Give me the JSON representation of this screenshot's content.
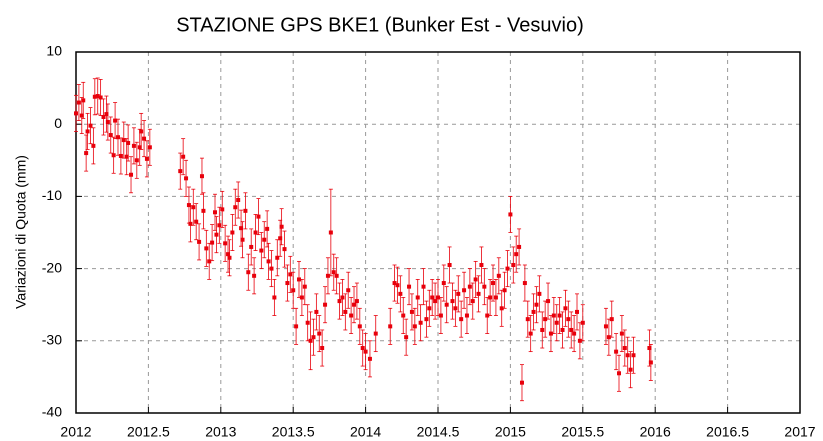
{
  "chart_data": {
    "type": "scatter",
    "title": "STAZIONE GPS BKE1 (Bunker Est - Vesuvio)",
    "y_label": "Variazioni di Quota (mm)",
    "xlim": [
      2012,
      2017
    ],
    "xticks": [
      2012,
      2012.5,
      2013,
      2013.5,
      2014,
      2014.5,
      2015,
      2015.5,
      2016,
      2016.5,
      2017
    ],
    "ylim": [
      -40,
      10
    ],
    "yticks": [
      -40,
      -30,
      -20,
      -10,
      0,
      10
    ],
    "grid": true,
    "series": [
      {
        "color": "#e8000b",
        "x": [
          2012.0,
          2012.02,
          2012.04,
          2012.05,
          2012.07,
          2012.08,
          2012.1,
          2012.12,
          2012.13,
          2012.15,
          2012.17,
          2012.19,
          2012.21,
          2012.22,
          2012.24,
          2012.26,
          2012.27,
          2012.29,
          2012.31,
          2012.33,
          2012.35,
          2012.36,
          2012.38,
          2012.4,
          2012.42,
          2012.44,
          2012.45,
          2012.47,
          2012.49,
          2012.51,
          2012.72,
          2012.74,
          2012.76,
          2012.78,
          2012.79,
          2012.81,
          2012.83,
          2012.85,
          2012.87,
          2012.88,
          2012.9,
          2012.92,
          2012.94,
          2012.96,
          2012.97,
          2012.99,
          2013.01,
          2013.03,
          2013.05,
          2013.06,
          2013.08,
          2013.1,
          2013.12,
          2013.14,
          2013.15,
          2013.17,
          2013.19,
          2013.21,
          2013.23,
          2013.24,
          2013.26,
          2013.28,
          2013.3,
          2013.32,
          2013.33,
          2013.35,
          2013.37,
          2013.39,
          2013.41,
          2013.42,
          2013.44,
          2013.46,
          2013.48,
          2013.5,
          2013.52,
          2013.54,
          2013.56,
          2013.58,
          2013.6,
          2013.62,
          2013.64,
          2013.66,
          2013.68,
          2013.7,
          2013.72,
          2013.74,
          2013.76,
          2013.78,
          2013.8,
          2013.82,
          2013.84,
          2013.86,
          2013.88,
          2013.9,
          2013.92,
          2013.94,
          2013.96,
          2013.98,
          2014.0,
          2014.03,
          2014.07,
          2014.17,
          2014.2,
          2014.22,
          2014.24,
          2014.26,
          2014.28,
          2014.3,
          2014.32,
          2014.34,
          2014.36,
          2014.38,
          2014.4,
          2014.42,
          2014.44,
          2014.46,
          2014.48,
          2014.5,
          2014.52,
          2014.54,
          2014.56,
          2014.58,
          2014.6,
          2014.62,
          2014.64,
          2014.66,
          2014.68,
          2014.7,
          2014.72,
          2014.74,
          2014.76,
          2014.78,
          2014.8,
          2014.82,
          2014.84,
          2014.86,
          2014.88,
          2014.9,
          2014.92,
          2014.94,
          2014.96,
          2014.98,
          2015.0,
          2015.02,
          2015.04,
          2015.06,
          2015.08,
          2015.1,
          2015.12,
          2015.14,
          2015.16,
          2015.18,
          2015.2,
          2015.22,
          2015.24,
          2015.26,
          2015.28,
          2015.3,
          2015.32,
          2015.34,
          2015.36,
          2015.38,
          2015.4,
          2015.42,
          2015.44,
          2015.46,
          2015.48,
          2015.5,
          2015.66,
          2015.68,
          2015.7,
          2015.73,
          2015.75,
          2015.77,
          2015.79,
          2015.81,
          2015.83,
          2015.85,
          2015.96,
          2015.97
        ],
        "values": [
          1.5,
          3.0,
          1.2,
          3.3,
          -4.0,
          -1.0,
          -0.2,
          -3.0,
          3.8,
          3.9,
          3.7,
          1.0,
          1.4,
          0.3,
          -1.5,
          -4.3,
          0.5,
          -1.8,
          -4.4,
          -2.2,
          -4.5,
          -2.6,
          -7.0,
          -3.0,
          -5.0,
          -3.2,
          -1.0,
          -2.0,
          -4.8,
          -3.2,
          -6.5,
          -4.5,
          -7.5,
          -11.2,
          -13.8,
          -11.5,
          -13.5,
          -16.3,
          -7.2,
          -12.0,
          -17.2,
          -19.0,
          -16.4,
          -12.2,
          -15.3,
          -14.0,
          -11.8,
          -16.5,
          -18.0,
          -18.5,
          -15.0,
          -11.5,
          -10.5,
          -14.4,
          -16.0,
          -12.0,
          -20.5,
          -17.0,
          -21.0,
          -15.0,
          -12.8,
          -17.5,
          -16.0,
          -14.5,
          -19.0,
          -20.0,
          -24.0,
          -18.5,
          -15.8,
          -14.2,
          -17.3,
          -22.0,
          -20.8,
          -23.0,
          -28.0,
          -21.5,
          -24.0,
          -22.5,
          -27.5,
          -30.0,
          -29.5,
          -26.0,
          -29.0,
          -31.0,
          -25.0,
          -21.0,
          -15.0,
          -20.5,
          -21.0,
          -24.5,
          -24.0,
          -26.0,
          -23.0,
          -26.5,
          -25.0,
          -24.5,
          -28.0,
          -31.0,
          -31.5,
          -32.5,
          -29.0,
          -28.0,
          -22.0,
          -22.3,
          -23.5,
          -26.5,
          -29.5,
          -22.5,
          -26.0,
          -28.0,
          -24.0,
          -27.5,
          -22.5,
          -27.0,
          -25.5,
          -24.0,
          -24.5,
          -24.0,
          -26.5,
          -22.0,
          -25.0,
          -19.5,
          -24.5,
          -25.5,
          -23.5,
          -27.0,
          -23.0,
          -26.5,
          -22.5,
          -24.5,
          -21.5,
          -23.5,
          -19.5,
          -22.5,
          -26.5,
          -24.0,
          -22.0,
          -24.0,
          -21.0,
          -25.5,
          -23.0,
          -20.0,
          -12.5,
          -19.5,
          -18.0,
          -17.0,
          -35.8,
          -22.0,
          -27.0,
          -29.0,
          -26.0,
          -25.0,
          -23.5,
          -28.5,
          -27.0,
          -24.5,
          -29.0,
          -26.5,
          -27.5,
          -26.5,
          -28.5,
          -25.5,
          -27.0,
          -28.5,
          -29.0,
          -26.0,
          -30.0,
          -27.5,
          -28.0,
          -29.5,
          -27.0,
          -31.5,
          -34.5,
          -29.0,
          -31.0,
          -32.0,
          -34.0,
          -32.0,
          -31.0,
          -33.0
        ],
        "errors": [
          2.5,
          2.5,
          2.5,
          2.5,
          2.5,
          2.5,
          2.5,
          2.5,
          2.5,
          2.5,
          2.5,
          2.5,
          2.5,
          2.5,
          2.5,
          2.5,
          2.5,
          2.5,
          2.5,
          2.5,
          2.5,
          2.5,
          2.5,
          2.5,
          2.5,
          2.5,
          2.5,
          2.5,
          2.5,
          2.5,
          2.5,
          2.5,
          2.5,
          2.5,
          2.5,
          2.5,
          2.5,
          2.5,
          2.5,
          2.5,
          2.5,
          2.5,
          2.5,
          2.5,
          2.5,
          2.5,
          2.5,
          2.5,
          2.5,
          2.5,
          2.5,
          2.5,
          2.5,
          2.5,
          2.5,
          2.5,
          2.5,
          2.5,
          2.5,
          2.5,
          2.5,
          2.5,
          2.5,
          2.5,
          2.5,
          2.5,
          2.5,
          2.5,
          2.5,
          2.5,
          2.5,
          2.5,
          2.5,
          2.5,
          2.5,
          2.5,
          2.5,
          2.5,
          2.5,
          4.0,
          2.5,
          2.5,
          2.5,
          2.5,
          2.5,
          2.5,
          6.0,
          2.5,
          2.5,
          2.5,
          2.5,
          2.5,
          2.5,
          2.5,
          2.5,
          2.5,
          2.5,
          2.5,
          2.5,
          2.5,
          2.5,
          2.5,
          2.5,
          2.5,
          2.5,
          2.5,
          2.5,
          2.5,
          2.5,
          2.5,
          2.5,
          2.5,
          2.5,
          2.5,
          2.5,
          2.5,
          2.5,
          2.5,
          2.5,
          2.5,
          2.5,
          2.5,
          2.5,
          2.5,
          2.5,
          2.5,
          2.5,
          2.5,
          2.5,
          2.5,
          2.5,
          2.5,
          2.5,
          2.5,
          2.5,
          2.5,
          2.5,
          2.5,
          2.5,
          2.5,
          2.5,
          2.5,
          2.5,
          2.5,
          2.5,
          2.5,
          2.5,
          2.5,
          2.5,
          2.5,
          2.5,
          2.5,
          2.5,
          2.5,
          2.5,
          2.5,
          2.5,
          2.5,
          2.5,
          2.5,
          2.5,
          2.5,
          2.5,
          2.5,
          2.5,
          2.5,
          2.5,
          2.5,
          2.5,
          2.5,
          2.5,
          2.5,
          2.5,
          2.5,
          2.5,
          2.5,
          2.5,
          2.5,
          2.5,
          2.5
        ]
      }
    ]
  }
}
